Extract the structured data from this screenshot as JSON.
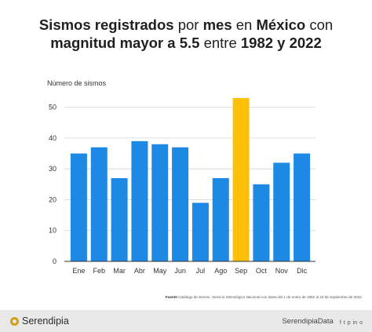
{
  "header": {
    "title_line1_bold": "Sismos registrados",
    "title_line1_a": "por",
    "title_line1_b": "mes",
    "title_line1_c": "en",
    "title_line1_d": "México",
    "title_line1_e": "con",
    "title_line2_bold": "magnitud mayor a",
    "title_line2_a": "5.5",
    "title_line2_b": "entre",
    "title_line2_c": "1982 y 2022"
  },
  "chart_data": {
    "type": "bar",
    "ylabel": "Número de sismos",
    "xlabel": "",
    "categories": [
      "Ene",
      "Feb",
      "Mar",
      "Abr",
      "May",
      "Jun",
      "Jul",
      "Ago",
      "Sep",
      "Oct",
      "Nov",
      "Dic"
    ],
    "values": [
      35,
      37,
      27,
      39,
      38,
      37,
      19,
      27,
      53,
      25,
      32,
      35
    ],
    "ylim": [
      0,
      55
    ],
    "yticks": [
      0,
      10,
      20,
      30,
      40,
      50
    ],
    "grid": true,
    "colors": {
      "bar": "#1e88e5",
      "highlight": "#ffc107",
      "highlight_category": "Sep"
    }
  },
  "source": {
    "label": "Fuente",
    "text": "Catálogo de sismos. Servicio Sismológico Nacional con datos del 1 de enero de 1982 al 22 de septiembre de 2022."
  },
  "footer": {
    "brand": "Serendipia",
    "handle": "SerendipiaData",
    "icons": [
      "facebook-icon",
      "twitter-icon",
      "pinterest-icon",
      "linkedin-icon",
      "instagram-icon"
    ],
    "icon_glyphs": [
      "f",
      "t",
      "p",
      "in",
      "o"
    ],
    "brand_color": "#cfa018"
  }
}
